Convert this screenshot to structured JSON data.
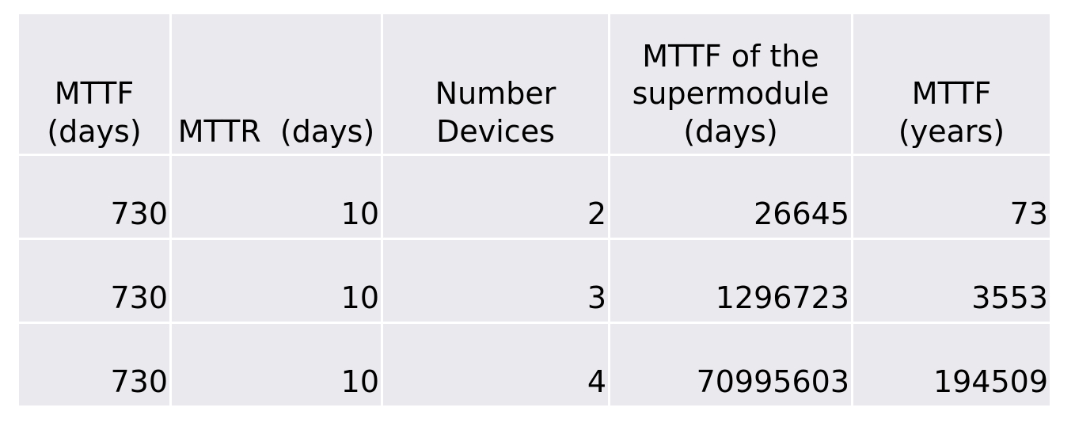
{
  "table": {
    "headers": [
      "MTTF\n(days)",
      "MTTR  (days)",
      "Number\nDevices",
      "MTTF of the\nsupermodule\n(days)",
      "MTTF\n(years)"
    ],
    "rows": [
      [
        "730",
        "10",
        "2",
        "26645",
        "73"
      ],
      [
        "730",
        "10",
        "3",
        "1296723",
        "3553"
      ],
      [
        "730",
        "10",
        "4",
        "70995603",
        "194509"
      ]
    ]
  }
}
